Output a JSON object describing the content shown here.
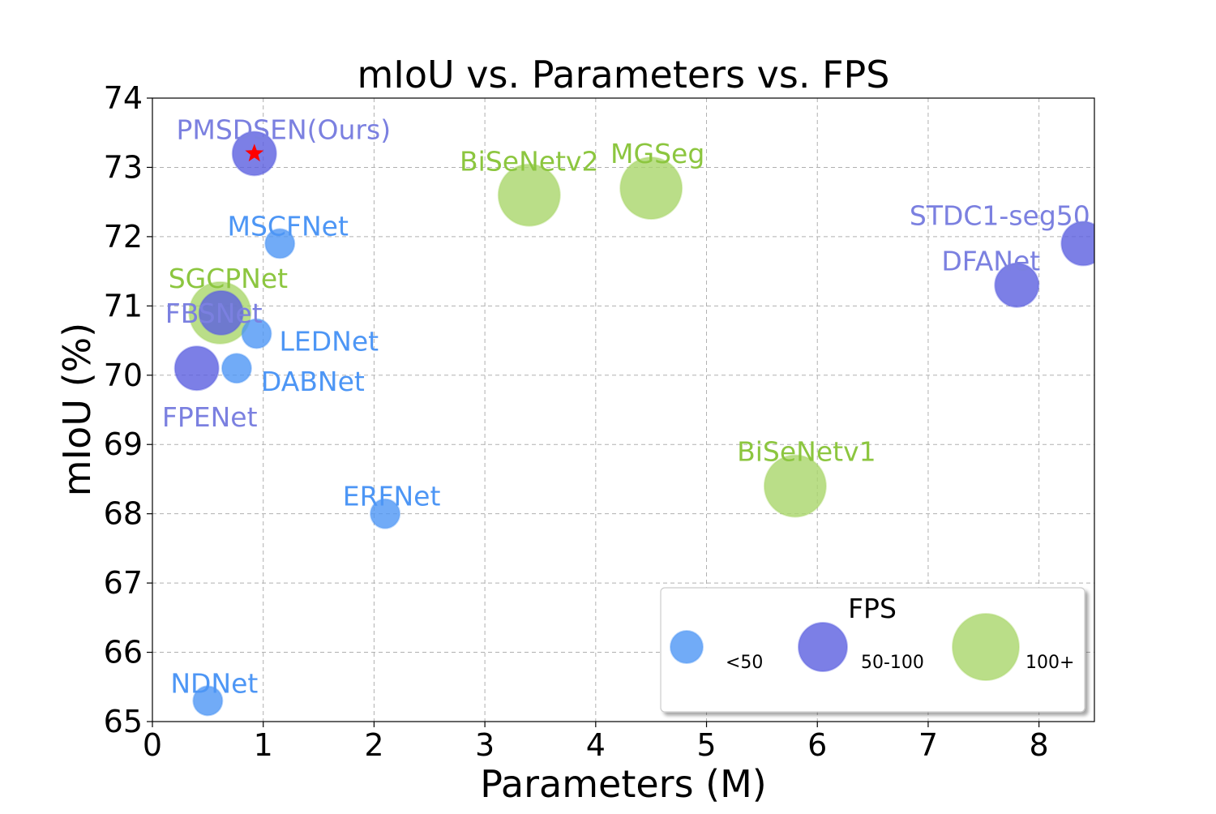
{
  "chart_data": {
    "type": "scatter",
    "title": "mIoU vs. Parameters vs. FPS",
    "xlabel": "Parameters (M)",
    "ylabel": "mIoU (%)",
    "xlim": [
      0,
      8.5
    ],
    "ylim": [
      65,
      74
    ],
    "x_ticks": [
      0,
      1,
      2,
      3,
      4,
      5,
      6,
      7,
      8
    ],
    "y_ticks": [
      65,
      66,
      67,
      68,
      69,
      70,
      71,
      72,
      73,
      74
    ],
    "grid": true,
    "fps_groups": [
      {
        "key": "low",
        "label": "<50",
        "color": "#4d96f5"
      },
      {
        "key": "mid",
        "label": "50-100",
        "color": "#5b5fe0"
      },
      {
        "key": "high",
        "label": "100+",
        "color": "#a9d66a"
      }
    ],
    "label_colors": {
      "low": "#4d96f5",
      "mid": "#7b80e0",
      "high": "#8cc63f"
    },
    "points": [
      {
        "name": "PMSDSEN(Ours)",
        "x": 0.92,
        "y": 73.2,
        "fps_group": "mid",
        "marker": "star",
        "marker_color": "#ff0000"
      },
      {
        "name": "MSCFNet",
        "x": 1.15,
        "y": 71.9,
        "fps_group": "low"
      },
      {
        "name": "SGCPNet",
        "x": 0.61,
        "y": 70.9,
        "fps_group": "high"
      },
      {
        "name": "FBSNet",
        "x": 0.62,
        "y": 70.9,
        "fps_group": "mid"
      },
      {
        "name": "LEDNet",
        "x": 0.94,
        "y": 70.6,
        "fps_group": "low"
      },
      {
        "name": "DABNet",
        "x": 0.76,
        "y": 70.1,
        "fps_group": "low"
      },
      {
        "name": "FPENet",
        "x": 0.4,
        "y": 70.1,
        "fps_group": "mid"
      },
      {
        "name": "ERFNet",
        "x": 2.1,
        "y": 68.0,
        "fps_group": "low"
      },
      {
        "name": "NDNet",
        "x": 0.5,
        "y": 65.3,
        "fps_group": "low"
      },
      {
        "name": "BiSeNetv2",
        "x": 3.4,
        "y": 72.6,
        "fps_group": "high"
      },
      {
        "name": "MGSeg",
        "x": 4.5,
        "y": 72.7,
        "fps_group": "high"
      },
      {
        "name": "BiSeNetv1",
        "x": 5.8,
        "y": 68.4,
        "fps_group": "high"
      },
      {
        "name": "STDC1-seg50",
        "x": 8.4,
        "y": 71.9,
        "fps_group": "mid"
      },
      {
        "name": "DFANet",
        "x": 7.8,
        "y": 71.3,
        "fps_group": "mid"
      }
    ],
    "legend": {
      "title": "FPS",
      "position": "lower right"
    }
  }
}
